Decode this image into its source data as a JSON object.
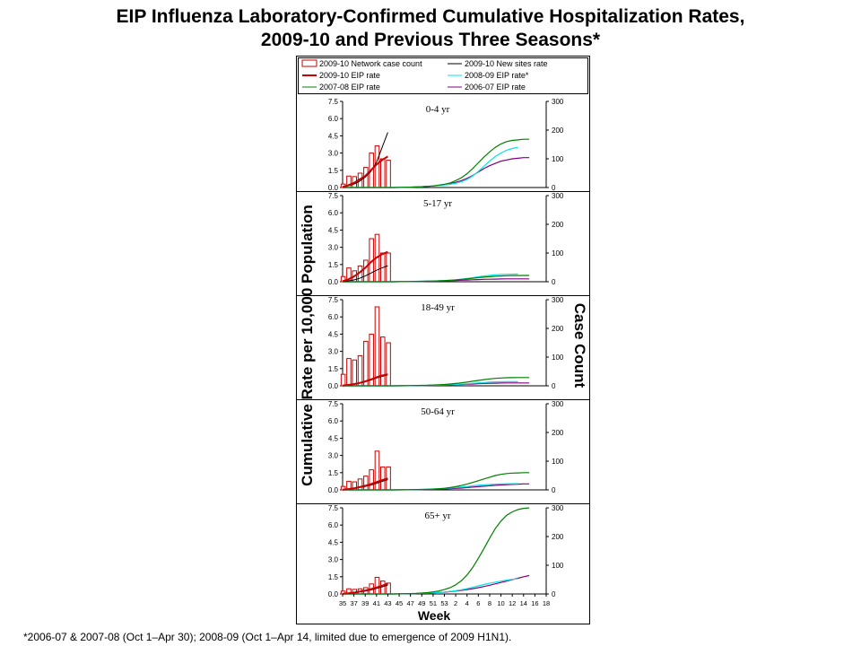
{
  "title": {
    "line1": "EIP Influenza Laboratory-Confirmed Cumulative Hospitalization Rates,",
    "line2": "2009-10 and Previous Three Seasons*"
  },
  "footnote": "*2006-07 & 2007-08 (Oct 1–Apr 30); 2008-09 (Oct 1–Apr 14, limited due to emergence of 2009 H1N1).",
  "colors": {
    "network_bar": "#cc0000",
    "eip_2009_10": "#cc0000",
    "new_sites": "#000000",
    "eip_2008_09": "#00e5e5",
    "eip_2007_08": "#008000",
    "eip_2006_07": "#800080"
  },
  "chart_data": {
    "type": "bar+line",
    "xlabel": "Week",
    "ylabel_left": "Cumulative Rate per 10,000 Population",
    "ylabel_right": "Case Count",
    "x_tick_labels": [
      "35",
      "37",
      "39",
      "41",
      "43",
      "45",
      "47",
      "49",
      "51",
      "53",
      "2",
      "4",
      "6",
      "8",
      "10",
      "12",
      "14",
      "16",
      "18"
    ],
    "weeks": [
      "35",
      "36",
      "37",
      "38",
      "39",
      "40",
      "41",
      "42",
      "43",
      "44",
      "45",
      "46",
      "47",
      "48",
      "49",
      "50",
      "51",
      "52",
      "53",
      "1",
      "2",
      "3",
      "4",
      "5",
      "6",
      "7",
      "8",
      "9",
      "10",
      "11",
      "12",
      "13",
      "14",
      "15",
      "16",
      "17",
      "18"
    ],
    "ylim_left": [
      0,
      7.5
    ],
    "yticks_left": [
      "0.0",
      "1.5",
      "3.0",
      "4.5",
      "6.0",
      "7.5"
    ],
    "ylim_right": [
      0,
      300
    ],
    "yticks_right": [
      "0",
      "100",
      "200",
      "300"
    ],
    "legend": [
      {
        "key": "network_bar",
        "label": "2009-10 Network case count",
        "kind": "bar"
      },
      {
        "key": "new_sites",
        "label": "2009-10 New sites rate",
        "kind": "line"
      },
      {
        "key": "eip_2009_10",
        "label": "2009-10 EIP rate",
        "kind": "line-thick"
      },
      {
        "key": "eip_2008_09",
        "label": "2008-09 EIP rate*",
        "kind": "line"
      },
      {
        "key": "eip_2007_08",
        "label": "2007-08 EIP rate",
        "kind": "line"
      },
      {
        "key": "eip_2006_07",
        "label": "2006-07 EIP rate",
        "kind": "line"
      }
    ],
    "panels": [
      {
        "label": "0-4 yr",
        "case_count": [
          12,
          40,
          38,
          50,
          70,
          120,
          145,
          100,
          95
        ],
        "eip_2009_10": [
          0.05,
          0.2,
          0.4,
          0.7,
          1.0,
          1.5,
          2.0,
          2.4,
          2.7
        ],
        "new_sites": [
          0.05,
          0.15,
          0.3,
          0.55,
          0.9,
          1.4,
          2.2,
          3.5,
          4.8
        ],
        "eip_2008_09": [
          0,
          0,
          0,
          0,
          0,
          0,
          0,
          0,
          0,
          0,
          0.01,
          0.02,
          0.03,
          0.05,
          0.07,
          0.1,
          0.13,
          0.17,
          0.22,
          0.28,
          0.37,
          0.5,
          0.7,
          1.0,
          1.4,
          1.85,
          2.3,
          2.7,
          3.0,
          3.25,
          3.4,
          3.5
        ],
        "eip_2007_08": [
          0,
          0,
          0,
          0,
          0,
          0,
          0,
          0,
          0,
          0,
          0.01,
          0.02,
          0.03,
          0.05,
          0.07,
          0.1,
          0.14,
          0.2,
          0.28,
          0.4,
          0.6,
          0.85,
          1.2,
          1.65,
          2.15,
          2.65,
          3.1,
          3.5,
          3.8,
          4.0,
          4.1,
          4.15,
          4.2,
          4.2
        ],
        "eip_2006_07": [
          0,
          0,
          0,
          0,
          0,
          0,
          0,
          0,
          0,
          0,
          0.01,
          0.02,
          0.03,
          0.05,
          0.07,
          0.1,
          0.13,
          0.18,
          0.25,
          0.33,
          0.45,
          0.6,
          0.8,
          1.05,
          1.35,
          1.65,
          1.9,
          2.1,
          2.3,
          2.4,
          2.5,
          2.55,
          2.6,
          2.6
        ]
      },
      {
        "label": "5-17 yr",
        "case_count": [
          18,
          48,
          38,
          55,
          75,
          150,
          165,
          100,
          100
        ],
        "eip_2009_10": [
          0.05,
          0.2,
          0.45,
          0.8,
          1.2,
          1.7,
          2.1,
          2.4,
          2.6
        ],
        "new_sites": [
          0.02,
          0.08,
          0.16,
          0.3,
          0.5,
          0.75,
          1.0,
          1.2,
          1.4
        ],
        "eip_2008_09": [
          0,
          0,
          0,
          0,
          0,
          0,
          0,
          0,
          0,
          0,
          0.01,
          0.01,
          0.02,
          0.03,
          0.04,
          0.05,
          0.06,
          0.08,
          0.1,
          0.13,
          0.17,
          0.22,
          0.28,
          0.35,
          0.43,
          0.5,
          0.55,
          0.6,
          0.63,
          0.65,
          0.66,
          0.67
        ],
        "eip_2007_08": [
          0,
          0,
          0,
          0,
          0,
          0,
          0,
          0,
          0,
          0,
          0.01,
          0.01,
          0.02,
          0.03,
          0.04,
          0.05,
          0.06,
          0.08,
          0.1,
          0.13,
          0.16,
          0.2,
          0.25,
          0.3,
          0.35,
          0.4,
          0.44,
          0.48,
          0.5,
          0.52,
          0.53,
          0.54,
          0.55,
          0.55
        ],
        "eip_2006_07": [
          0,
          0,
          0,
          0,
          0,
          0,
          0,
          0,
          0,
          0,
          0.01,
          0.01,
          0.01,
          0.02,
          0.03,
          0.04,
          0.05,
          0.06,
          0.07,
          0.09,
          0.11,
          0.13,
          0.15,
          0.17,
          0.19,
          0.21,
          0.22,
          0.23,
          0.24,
          0.25,
          0.25,
          0.25,
          0.25,
          0.25
        ]
      },
      {
        "label": "18-49 yr",
        "case_count": [
          40,
          95,
          90,
          105,
          155,
          180,
          275,
          170,
          150
        ],
        "eip_2009_10": [
          0.02,
          0.08,
          0.15,
          0.25,
          0.38,
          0.55,
          0.75,
          0.9,
          1.0
        ],
        "new_sites": [
          0.02,
          0.07,
          0.14,
          0.23,
          0.35,
          0.5,
          0.68,
          0.82,
          0.95
        ],
        "eip_2008_09": [
          0,
          0,
          0,
          0,
          0,
          0,
          0,
          0,
          0,
          0,
          0,
          0.01,
          0.01,
          0.02,
          0.03,
          0.04,
          0.05,
          0.06,
          0.08,
          0.1,
          0.12,
          0.15,
          0.18,
          0.22,
          0.26,
          0.29,
          0.32,
          0.34,
          0.35,
          0.36,
          0.36,
          0.36
        ],
        "eip_2007_08": [
          0,
          0,
          0,
          0,
          0,
          0,
          0,
          0,
          0,
          0,
          0.01,
          0.01,
          0.02,
          0.03,
          0.04,
          0.05,
          0.07,
          0.09,
          0.12,
          0.16,
          0.2,
          0.26,
          0.32,
          0.4,
          0.47,
          0.54,
          0.6,
          0.65,
          0.68,
          0.7,
          0.71,
          0.72,
          0.72,
          0.72
        ],
        "eip_2006_07": [
          0,
          0,
          0,
          0,
          0,
          0,
          0,
          0,
          0,
          0,
          0,
          0.01,
          0.01,
          0.02,
          0.02,
          0.03,
          0.04,
          0.05,
          0.06,
          0.08,
          0.1,
          0.12,
          0.14,
          0.16,
          0.18,
          0.2,
          0.22,
          0.23,
          0.24,
          0.25,
          0.25,
          0.25,
          0.25,
          0.25
        ]
      },
      {
        "label": "50-64 yr",
        "case_count": [
          12,
          30,
          28,
          38,
          48,
          70,
          135,
          80,
          80
        ],
        "eip_2009_10": [
          0.02,
          0.07,
          0.14,
          0.24,
          0.36,
          0.5,
          0.68,
          0.85,
          1.0
        ],
        "new_sites": [
          0.02,
          0.06,
          0.12,
          0.2,
          0.3,
          0.42,
          0.58,
          0.74,
          0.9
        ],
        "eip_2008_09": [
          0,
          0,
          0,
          0,
          0,
          0,
          0,
          0,
          0,
          0,
          0.01,
          0.01,
          0.02,
          0.03,
          0.04,
          0.06,
          0.08,
          0.1,
          0.13,
          0.16,
          0.2,
          0.25,
          0.3,
          0.35,
          0.4,
          0.44,
          0.47,
          0.5,
          0.52,
          0.53,
          0.54,
          0.55
        ],
        "eip_2007_08": [
          0,
          0,
          0,
          0,
          0,
          0,
          0,
          0,
          0,
          0,
          0.01,
          0.01,
          0.02,
          0.03,
          0.04,
          0.05,
          0.07,
          0.1,
          0.14,
          0.2,
          0.28,
          0.38,
          0.5,
          0.65,
          0.8,
          0.95,
          1.1,
          1.25,
          1.35,
          1.42,
          1.46,
          1.48,
          1.5,
          1.5
        ],
        "eip_2006_07": [
          0,
          0,
          0,
          0,
          0,
          0,
          0,
          0,
          0,
          0,
          0,
          0.01,
          0.01,
          0.02,
          0.03,
          0.04,
          0.05,
          0.06,
          0.08,
          0.1,
          0.13,
          0.16,
          0.2,
          0.24,
          0.28,
          0.32,
          0.36,
          0.4,
          0.43,
          0.46,
          0.48,
          0.5,
          0.52,
          0.52
        ]
      },
      {
        "label": "65+ yr",
        "case_count": [
          10,
          18,
          16,
          18,
          22,
          35,
          58,
          45,
          38
        ],
        "eip_2009_10": [
          0.02,
          0.06,
          0.12,
          0.2,
          0.3,
          0.42,
          0.56,
          0.72,
          0.9
        ],
        "new_sites": [
          0.02,
          0.05,
          0.1,
          0.17,
          0.25,
          0.35,
          0.48,
          0.62,
          0.78
        ],
        "eip_2008_09": [
          0,
          0,
          0,
          0,
          0,
          0,
          0,
          0,
          0,
          0,
          0.01,
          0.02,
          0.03,
          0.04,
          0.06,
          0.08,
          0.1,
          0.13,
          0.17,
          0.22,
          0.28,
          0.36,
          0.46,
          0.58,
          0.7,
          0.82,
          0.93,
          1.03,
          1.12,
          1.2,
          1.27,
          1.33
        ],
        "eip_2007_08": [
          0,
          0,
          0,
          0,
          0,
          0,
          0,
          0,
          0,
          0,
          0.01,
          0.02,
          0.03,
          0.05,
          0.08,
          0.12,
          0.18,
          0.26,
          0.38,
          0.55,
          0.8,
          1.15,
          1.65,
          2.3,
          3.1,
          3.95,
          4.85,
          5.7,
          6.35,
          6.85,
          7.15,
          7.35,
          7.45,
          7.5
        ],
        "eip_2006_07": [
          0,
          0,
          0,
          0,
          0,
          0,
          0,
          0,
          0,
          0,
          0.01,
          0.02,
          0.03,
          0.04,
          0.06,
          0.08,
          0.1,
          0.13,
          0.16,
          0.2,
          0.25,
          0.31,
          0.38,
          0.46,
          0.55,
          0.65,
          0.76,
          0.88,
          1.0,
          1.12,
          1.25,
          1.37,
          1.5,
          1.6
        ]
      }
    ]
  }
}
